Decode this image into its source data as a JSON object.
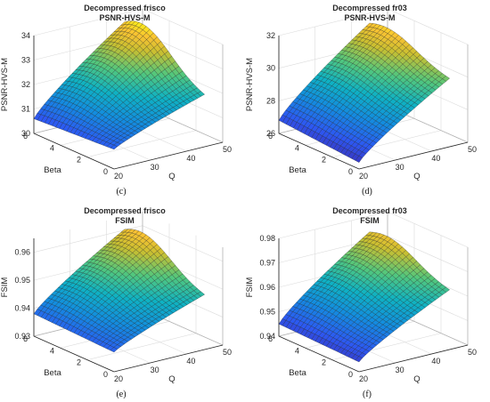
{
  "chart_data": [
    {
      "type": "surface",
      "title": "Decompressed frisco",
      "subtitle": "PSNR-HVS-M",
      "xlabel": "Q",
      "ylabel": "Beta",
      "zlabel": "PSNR-HVS-M",
      "caption": "(c)",
      "xlim": [
        20,
        50
      ],
      "ylim": [
        0,
        6
      ],
      "zlim": [
        30,
        34
      ],
      "xticks": [
        "20",
        "30",
        "40",
        "50"
      ],
      "yticks": [
        "0",
        "2",
        "4",
        "6"
      ],
      "zticks": [
        "30",
        "31",
        "32",
        "33",
        "34"
      ],
      "grid": true,
      "colormap": "parula",
      "surface_model": {
        "q_axis": [
          20,
          45
        ],
        "beta_axis": [
          0,
          6
        ],
        "z_at_q20_beta0": 30.8,
        "z_at_q20_beta6": 30.6,
        "z_peak": 33.9,
        "z_at_q45_beta0": 31.9
      }
    },
    {
      "type": "surface",
      "title": "Decompressed fr03",
      "subtitle": "PSNR-HVS-M",
      "xlabel": "Q",
      "ylabel": "Beta",
      "zlabel": "PSNR-HVS-M",
      "caption": "(d)",
      "xlim": [
        20,
        50
      ],
      "ylim": [
        0,
        6
      ],
      "zlim": [
        26,
        32
      ],
      "xticks": [
        "20",
        "30",
        "40",
        "50"
      ],
      "yticks": [
        "0",
        "2",
        "4",
        "6"
      ],
      "zticks": [
        "26",
        "28",
        "30",
        "32"
      ],
      "grid": true,
      "colormap": "parula",
      "surface_model": {
        "q_axis": [
          20,
          45
        ],
        "beta_axis": [
          0,
          6
        ],
        "z_at_q20_beta0": 26.4,
        "z_at_q20_beta6": 26.8,
        "z_peak": 31.6,
        "z_at_q45_beta0": 30.0
      }
    },
    {
      "type": "surface",
      "title": "Decompressed frisco",
      "subtitle": "FSIM",
      "xlabel": "Q",
      "ylabel": "Beta",
      "zlabel": "FSIM",
      "caption": "(e)",
      "xlim": [
        20,
        50
      ],
      "ylim": [
        0,
        6
      ],
      "zlim": [
        0.93,
        0.965
      ],
      "xticks": [
        "20",
        "30",
        "40",
        "50"
      ],
      "yticks": [
        "0",
        "2",
        "4",
        "6"
      ],
      "zticks": [
        "0.93",
        "0.94",
        "0.95",
        "0.96"
      ],
      "grid": true,
      "colormap": "parula",
      "surface_model": {
        "q_axis": [
          20,
          45
        ],
        "beta_axis": [
          0,
          6
        ],
        "z_at_q20_beta0": 0.937,
        "z_at_q20_beta6": 0.938,
        "z_peak": 0.962,
        "z_at_q45_beta0": 0.948
      }
    },
    {
      "type": "surface",
      "title": "Decompressed fr03",
      "subtitle": "FSIM",
      "xlabel": "Q",
      "ylabel": "Beta",
      "zlabel": "FSIM",
      "caption": "(f)",
      "xlim": [
        20,
        50
      ],
      "ylim": [
        0,
        6
      ],
      "zlim": [
        0.94,
        0.98
      ],
      "xticks": [
        "20",
        "30",
        "40",
        "50"
      ],
      "yticks": [
        "0",
        "2",
        "4",
        "6"
      ],
      "zticks": [
        "0.94",
        "0.95",
        "0.96",
        "0.97",
        "0.98"
      ],
      "grid": true,
      "colormap": "parula",
      "surface_model": {
        "q_axis": [
          20,
          45
        ],
        "beta_axis": [
          0,
          6
        ],
        "z_at_q20_beta0": 0.944,
        "z_at_q20_beta6": 0.945,
        "z_peak": 0.975,
        "z_at_q45_beta0": 0.963
      }
    }
  ]
}
